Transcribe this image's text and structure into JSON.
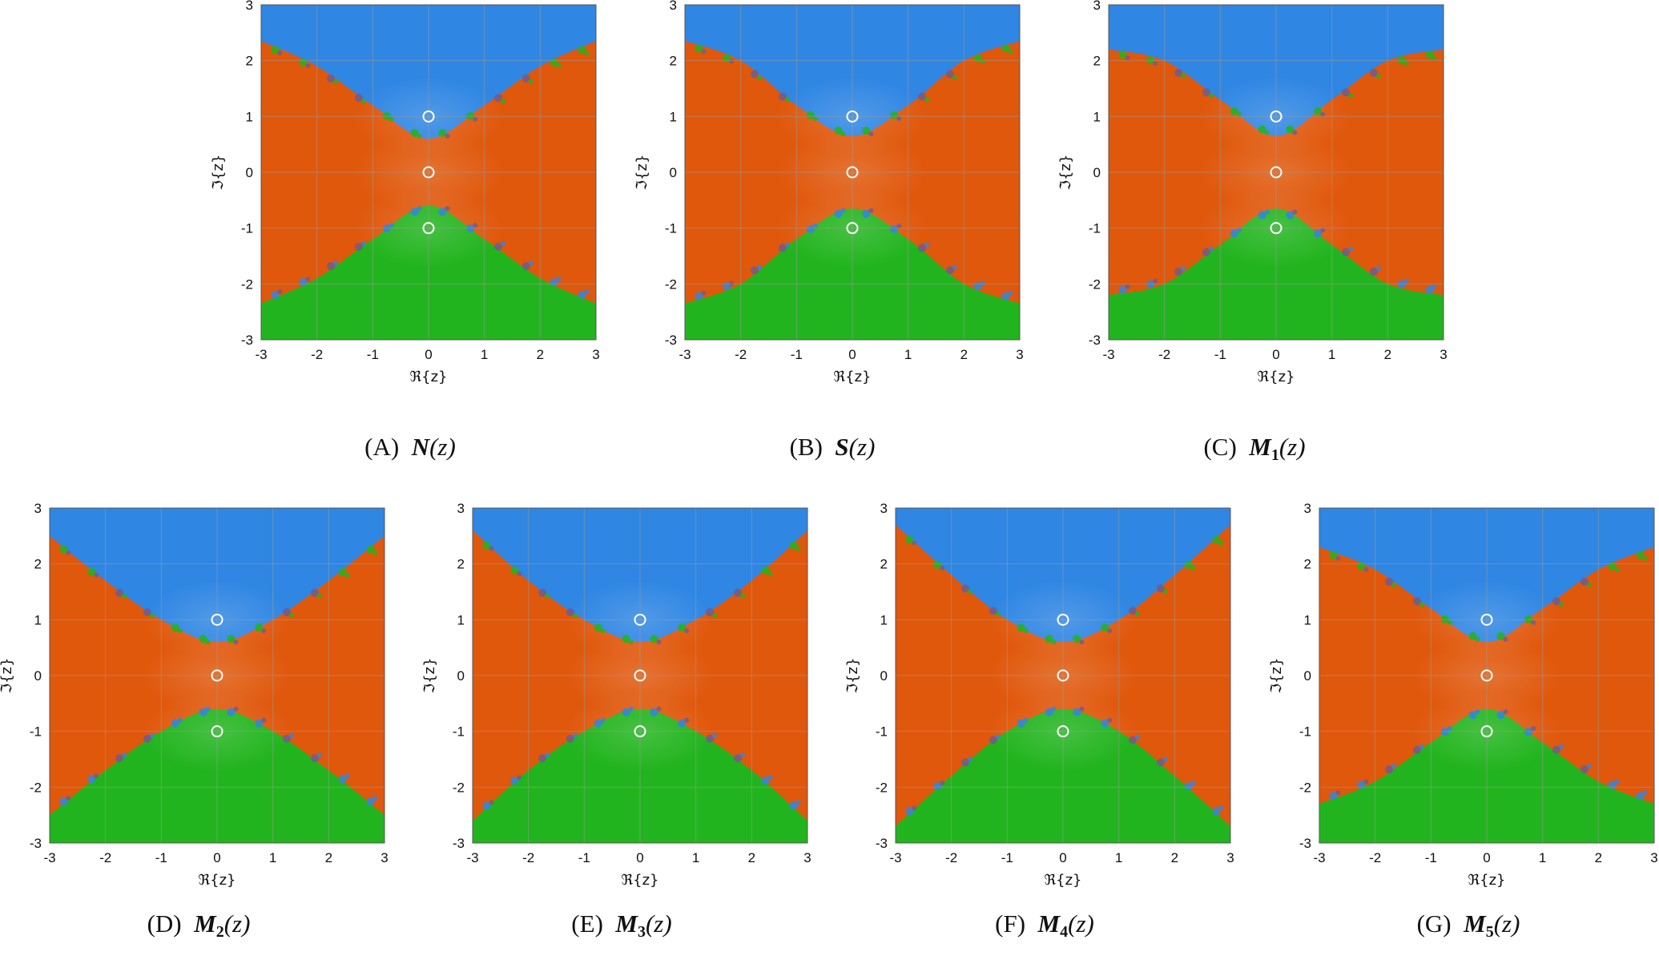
{
  "colors": {
    "blue": "#2f86e3",
    "blue_light": "#3c97ec",
    "orange": "#e0580c",
    "orange_light": "#ec6a1e",
    "green": "#22b41e",
    "green_light": "#2fc42a",
    "spot_purple": "#6e5c8e",
    "grid": "#9a9a9a",
    "root_marker": "#ffffff"
  },
  "chart_data": [
    {
      "type": "heatmap",
      "id": "A",
      "caption_label": "(A)",
      "caption_fn": "N",
      "caption_sub": "",
      "caption_arg": "(z)",
      "xlabel": "ℜ{z}",
      "ylabel": "ℑ{z}",
      "xlim": [
        -3,
        3
      ],
      "ylim": [
        -3,
        3
      ],
      "xticks": [
        "-3",
        "-2",
        "-1",
        "0",
        "1",
        "2",
        "3"
      ],
      "yticks": [
        "3",
        "2",
        "1",
        "0",
        "-1",
        "-2",
        "-3"
      ],
      "roots": [
        [
          0,
          1
        ],
        [
          0,
          0
        ],
        [
          0,
          -1
        ]
      ],
      "basin_boundary_upper": [
        [
          -3,
          2.35
        ],
        [
          -2,
          1.9
        ],
        [
          -1,
          1.2
        ],
        [
          0,
          0.6
        ],
        [
          1,
          1.2
        ],
        [
          2,
          1.9
        ],
        [
          3,
          2.35
        ]
      ],
      "basin_boundary_lower": [
        [
          -3,
          -2.35
        ],
        [
          -2,
          -1.9
        ],
        [
          -1,
          -1.2
        ],
        [
          0,
          -0.6
        ],
        [
          1,
          -1.2
        ],
        [
          2,
          -1.9
        ],
        [
          3,
          -2.35
        ]
      ],
      "basin_colors": [
        "blue",
        "orange",
        "green"
      ]
    },
    {
      "type": "heatmap",
      "id": "B",
      "caption_label": "(B)",
      "caption_fn": "S",
      "caption_sub": "",
      "caption_arg": "(z)",
      "xlabel": "ℜ{z}",
      "ylabel": "ℑ{z}",
      "xlim": [
        -3,
        3
      ],
      "ylim": [
        -3,
        3
      ],
      "xticks": [
        "-3",
        "-2",
        "-1",
        "0",
        "1",
        "2",
        "3"
      ],
      "yticks": [
        "3",
        "2",
        "1",
        "0",
        "-1",
        "-2",
        "-3"
      ],
      "roots": [
        [
          0,
          1
        ],
        [
          0,
          0
        ],
        [
          0,
          -1
        ]
      ],
      "basin_boundary_upper": [
        [
          -3,
          2.35
        ],
        [
          -2,
          2.0
        ],
        [
          -1,
          1.2
        ],
        [
          0,
          0.65
        ],
        [
          1,
          1.2
        ],
        [
          2,
          2.0
        ],
        [
          3,
          2.35
        ]
      ],
      "basin_boundary_lower": [
        [
          -3,
          -2.35
        ],
        [
          -2,
          -2.0
        ],
        [
          -1,
          -1.2
        ],
        [
          0,
          -0.65
        ],
        [
          1,
          -1.2
        ],
        [
          2,
          -2.0
        ],
        [
          3,
          -2.35
        ]
      ],
      "basin_colors": [
        "blue",
        "orange",
        "green"
      ]
    },
    {
      "type": "heatmap",
      "id": "C",
      "caption_label": "(C)",
      "caption_fn": "M",
      "caption_sub": "1",
      "caption_arg": "(z)",
      "xlabel": "ℜ{z}",
      "ylabel": "ℑ{z}",
      "xlim": [
        -3,
        3
      ],
      "ylim": [
        -3,
        3
      ],
      "xticks": [
        "-3",
        "-2",
        "-1",
        "0",
        "1",
        "2",
        "3"
      ],
      "yticks": [
        "3",
        "2",
        "1",
        "0",
        "-1",
        "-2",
        "-3"
      ],
      "roots": [
        [
          0,
          1
        ],
        [
          0,
          0
        ],
        [
          0,
          -1
        ]
      ],
      "basin_boundary_upper": [
        [
          -3,
          2.2
        ],
        [
          -2,
          2.0
        ],
        [
          -1,
          1.3
        ],
        [
          0,
          0.65
        ],
        [
          1,
          1.3
        ],
        [
          2,
          2.0
        ],
        [
          3,
          2.2
        ]
      ],
      "basin_boundary_lower": [
        [
          -3,
          -2.2
        ],
        [
          -2,
          -2.0
        ],
        [
          -1,
          -1.3
        ],
        [
          0,
          -0.65
        ],
        [
          1,
          -1.3
        ],
        [
          2,
          -2.0
        ],
        [
          3,
          -2.2
        ]
      ],
      "basin_colors": [
        "blue",
        "orange",
        "green"
      ]
    },
    {
      "type": "heatmap",
      "id": "D",
      "caption_label": "(D)",
      "caption_fn": "M",
      "caption_sub": "2",
      "caption_arg": "(z)",
      "xlabel": "ℜ{z}",
      "ylabel": "ℑ{z}",
      "xlim": [
        -3,
        3
      ],
      "ylim": [
        -3,
        3
      ],
      "xticks": [
        "-3",
        "-2",
        "-1",
        "0",
        "1",
        "2",
        "3"
      ],
      "yticks": [
        "3",
        "2",
        "1",
        "0",
        "-1",
        "-2",
        "-3"
      ],
      "roots": [
        [
          0,
          1
        ],
        [
          0,
          0
        ],
        [
          0,
          -1
        ]
      ],
      "basin_boundary_upper": [
        [
          -3,
          2.5
        ],
        [
          -2,
          1.7
        ],
        [
          -1,
          1.0
        ],
        [
          0,
          0.6
        ],
        [
          1,
          1.0
        ],
        [
          2,
          1.7
        ],
        [
          3,
          2.5
        ]
      ],
      "basin_boundary_lower": [
        [
          -3,
          -2.5
        ],
        [
          -2,
          -1.7
        ],
        [
          -1,
          -1.0
        ],
        [
          0,
          -0.6
        ],
        [
          1,
          -1.0
        ],
        [
          2,
          -1.7
        ],
        [
          3,
          -2.5
        ]
      ],
      "basin_colors": [
        "blue",
        "orange",
        "green"
      ]
    },
    {
      "type": "heatmap",
      "id": "E",
      "caption_label": "(E)",
      "caption_fn": "M",
      "caption_sub": "3",
      "caption_arg": "(z)",
      "xlabel": "ℜ{z}",
      "ylabel": "ℑ{z}",
      "xlim": [
        -3,
        3
      ],
      "ylim": [
        -3,
        3
      ],
      "xticks": [
        "-3",
        "-2",
        "-1",
        "0",
        "1",
        "2",
        "3"
      ],
      "yticks": [
        "3",
        "2",
        "1",
        "0",
        "-1",
        "-2",
        "-3"
      ],
      "roots": [
        [
          0,
          1
        ],
        [
          0,
          0
        ],
        [
          0,
          -1
        ]
      ],
      "basin_boundary_upper": [
        [
          -3,
          2.6
        ],
        [
          -2,
          1.7
        ],
        [
          -1,
          1.0
        ],
        [
          0,
          0.6
        ],
        [
          1,
          1.0
        ],
        [
          2,
          1.7
        ],
        [
          3,
          2.6
        ]
      ],
      "basin_boundary_lower": [
        [
          -3,
          -2.6
        ],
        [
          -2,
          -1.7
        ],
        [
          -1,
          -1.0
        ],
        [
          0,
          -0.6
        ],
        [
          1,
          -1.0
        ],
        [
          2,
          -1.7
        ],
        [
          3,
          -2.6
        ]
      ],
      "basin_colors": [
        "blue",
        "orange",
        "green"
      ]
    },
    {
      "type": "heatmap",
      "id": "F",
      "caption_label": "(F)",
      "caption_fn": "M",
      "caption_sub": "4",
      "caption_arg": "(z)",
      "xlabel": "ℜ{z}",
      "ylabel": "ℑ{z}",
      "xlim": [
        -3,
        3
      ],
      "ylim": [
        -3,
        3
      ],
      "xticks": [
        "-3",
        "-2",
        "-1",
        "0",
        "1",
        "2",
        "3"
      ],
      "yticks": [
        "3",
        "2",
        "1",
        "0",
        "-1",
        "-2",
        "-3"
      ],
      "roots": [
        [
          0,
          1
        ],
        [
          0,
          0
        ],
        [
          0,
          -1
        ]
      ],
      "basin_boundary_upper": [
        [
          -3,
          2.7
        ],
        [
          -2,
          1.8
        ],
        [
          -1,
          1.0
        ],
        [
          0,
          0.6
        ],
        [
          1,
          1.0
        ],
        [
          2,
          1.8
        ],
        [
          3,
          2.7
        ]
      ],
      "basin_boundary_lower": [
        [
          -3,
          -2.7
        ],
        [
          -2,
          -1.8
        ],
        [
          -1,
          -1.0
        ],
        [
          0,
          -0.6
        ],
        [
          1,
          -1.0
        ],
        [
          2,
          -1.8
        ],
        [
          3,
          -2.7
        ]
      ],
      "basin_colors": [
        "blue",
        "orange",
        "green"
      ]
    },
    {
      "type": "heatmap",
      "id": "G",
      "caption_label": "(G)",
      "caption_fn": "M",
      "caption_sub": "5",
      "caption_arg": "(z)",
      "xlabel": "ℜ{z}",
      "ylabel": "ℑ{z}",
      "xlim": [
        -3,
        3
      ],
      "ylim": [
        -3,
        3
      ],
      "xticks": [
        "-3",
        "-2",
        "-1",
        "0",
        "1",
        "2",
        "3"
      ],
      "yticks": [
        "3",
        "2",
        "1",
        "0",
        "-1",
        "-2",
        "-3"
      ],
      "roots": [
        [
          0,
          1
        ],
        [
          0,
          0
        ],
        [
          0,
          -1
        ]
      ],
      "basin_boundary_upper": [
        [
          -3,
          2.3
        ],
        [
          -2,
          1.9
        ],
        [
          -1,
          1.2
        ],
        [
          0,
          0.6
        ],
        [
          1,
          1.2
        ],
        [
          2,
          1.9
        ],
        [
          3,
          2.3
        ]
      ],
      "basin_boundary_lower": [
        [
          -3,
          -2.3
        ],
        [
          -2,
          -1.9
        ],
        [
          -1,
          -1.2
        ],
        [
          0,
          -0.6
        ],
        [
          1,
          -1.2
        ],
        [
          2,
          -1.9
        ],
        [
          3,
          -2.3
        ]
      ],
      "basin_colors": [
        "blue",
        "orange",
        "green"
      ]
    }
  ]
}
